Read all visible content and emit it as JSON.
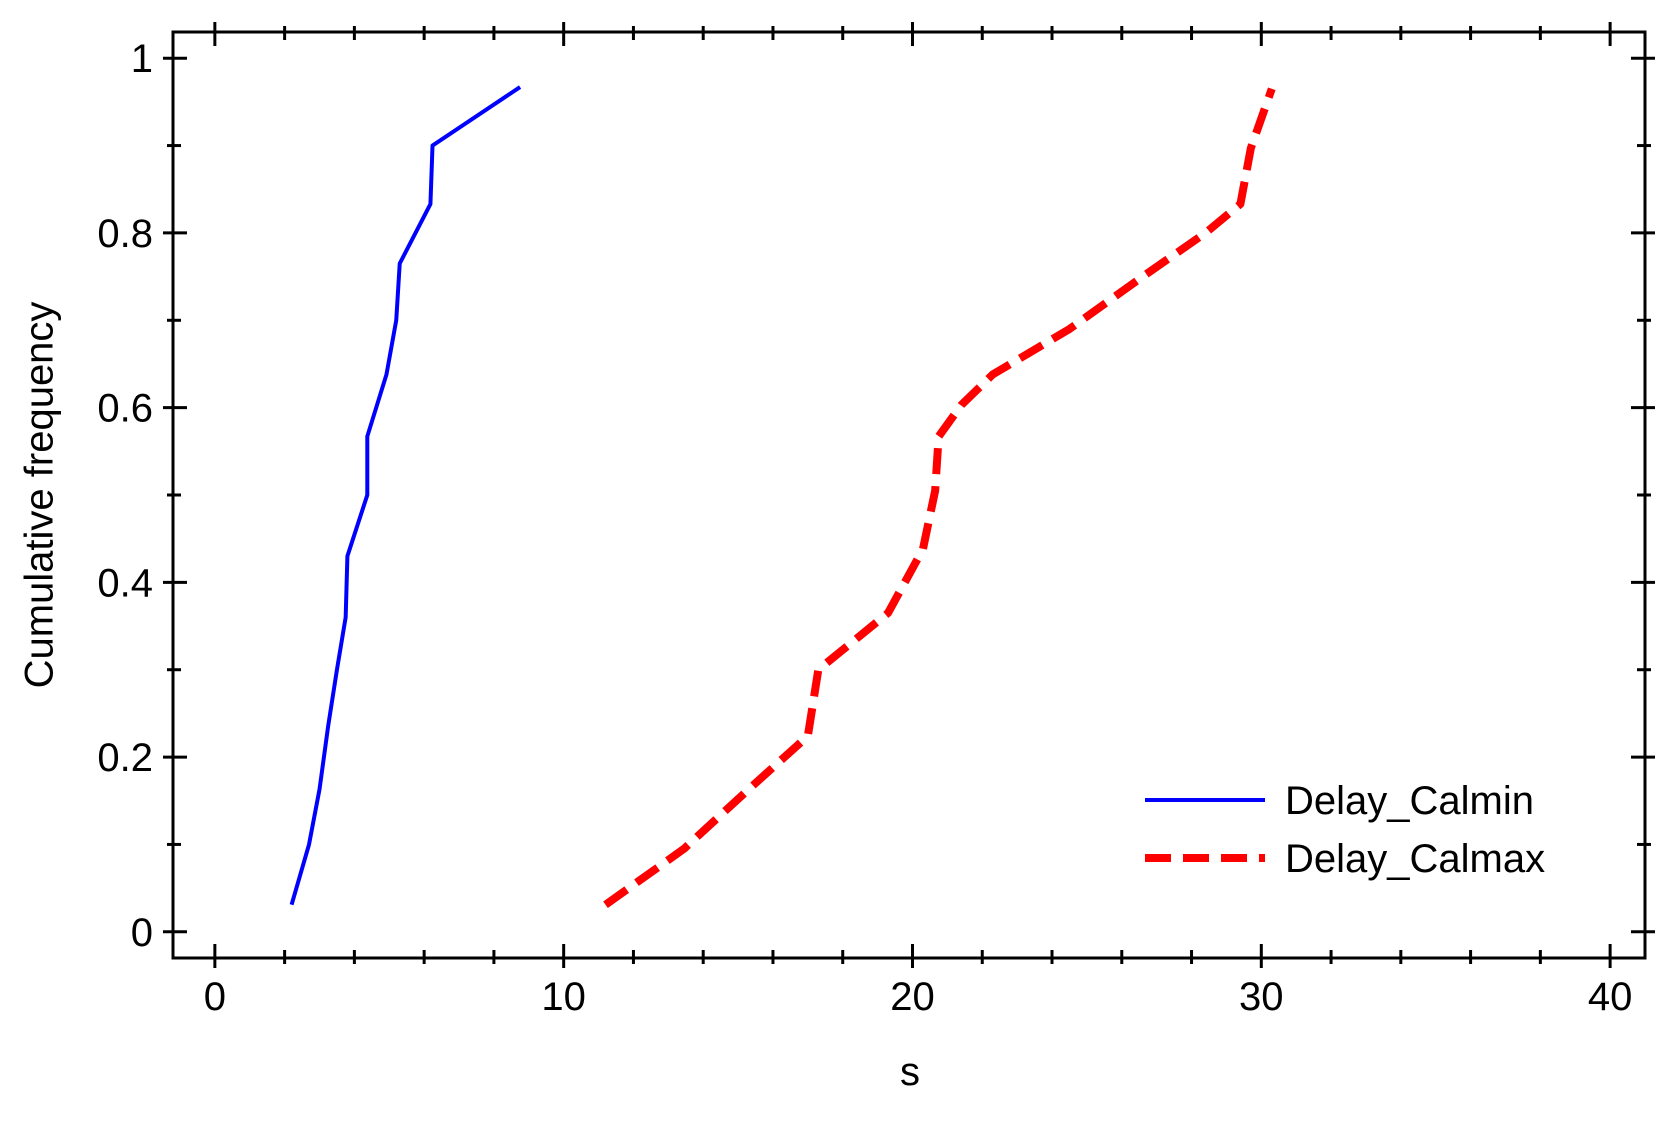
{
  "chart_data": {
    "type": "line",
    "xlabel": "s",
    "ylabel": "Cumulative frequency",
    "xlim": [
      -1.2,
      41
    ],
    "ylim": [
      -0.03,
      1.03
    ],
    "xticks": [
      0,
      10,
      20,
      30,
      40
    ],
    "yticks": [
      0,
      0.2,
      0.4,
      0.6,
      0.8,
      1
    ],
    "xminorticks": [
      2,
      4,
      6,
      8,
      12,
      14,
      16,
      18,
      22,
      24,
      26,
      28,
      32,
      34,
      36,
      38
    ],
    "yminorticks": [
      0.1,
      0.3,
      0.5,
      0.7,
      0.9
    ],
    "legend": "lower right",
    "series": [
      {
        "name": "Delay_Calmin",
        "color": "#0000ff",
        "dash": "solid",
        "x": [
          2.2,
          2.7,
          3.0,
          3.25,
          3.5,
          3.75,
          3.8,
          4.37,
          4.37,
          4.92,
          5.2,
          5.3,
          6.18,
          6.24,
          8.75
        ],
        "values": [
          0.031,
          0.1,
          0.163,
          0.236,
          0.3,
          0.36,
          0.43,
          0.5,
          0.567,
          0.638,
          0.7,
          0.765,
          0.833,
          0.9,
          0.967
        ]
      },
      {
        "name": "Delay_Calmax",
        "color": "#ff0000",
        "dash": "dashed",
        "x": [
          11.2,
          13.45,
          15.3,
          17.0,
          17.3,
          19.3,
          20.3,
          20.65,
          20.75,
          21.4,
          22.3,
          24.5,
          26.6,
          28.4,
          29.4,
          29.7,
          30.3
        ],
        "values": [
          0.031,
          0.095,
          0.163,
          0.224,
          0.3,
          0.365,
          0.438,
          0.505,
          0.567,
          0.603,
          0.638,
          0.69,
          0.75,
          0.8,
          0.833,
          0.897,
          0.965
        ]
      }
    ]
  }
}
